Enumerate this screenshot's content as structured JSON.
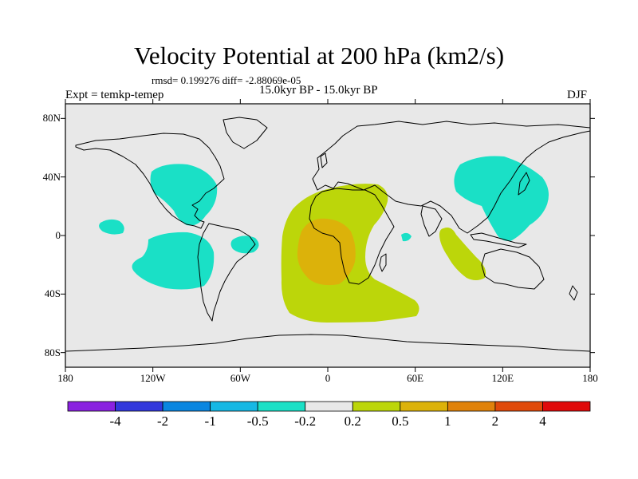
{
  "figure": {
    "title": "Velocity Potential at 200 hPa (km2/s)",
    "stats": "rmsd= 0.199276 diff= -2.88069e-05",
    "experiment": "Expt = temkp-temep",
    "period": "15.0kyr BP - 15.0kyr BP",
    "season": "DJF"
  },
  "axes": {
    "lat_labels": [
      "80N",
      "40N",
      "0",
      "40S",
      "80S"
    ],
    "lon_labels": [
      "180",
      "120W",
      "60W",
      "0",
      "60E",
      "120E",
      "180"
    ]
  },
  "colorbar": {
    "labels": [
      "-4",
      "-2",
      "-1",
      "-0.5",
      "-0.2",
      "0.2",
      "0.5",
      "1",
      "2",
      "4"
    ],
    "colors": [
      "#8a22e0",
      "#3238dc",
      "#0a86e0",
      "#16b8e4",
      "#1ae0c6",
      "#e8e8e8",
      "#bcd60a",
      "#dcb20a",
      "#e0820a",
      "#e04a0a",
      "#e00a0a"
    ]
  },
  "map_colors": {
    "background": "#e8e8e8",
    "negative_anomaly": "#1ae0c6",
    "weak_positive_anomaly": "#bcd60a",
    "moderate_positive_anomaly": "#dcb20a"
  },
  "icons": [
    "world-coastline-map"
  ]
}
